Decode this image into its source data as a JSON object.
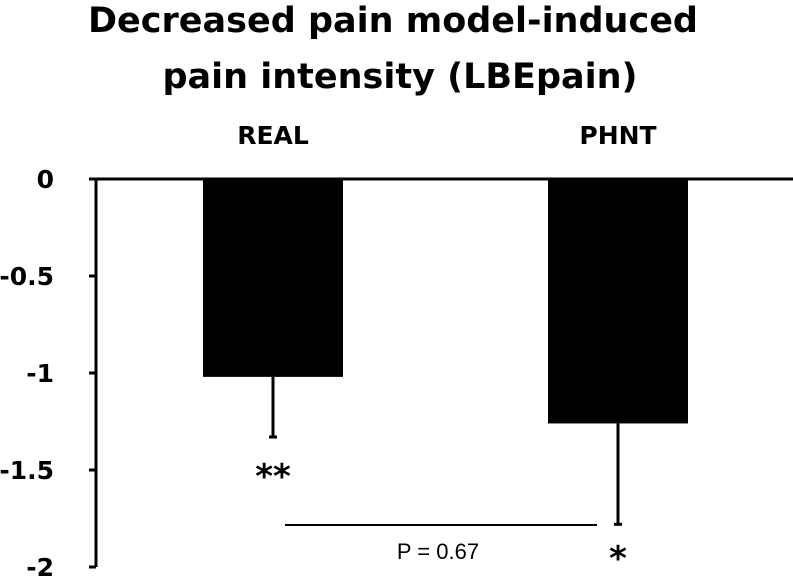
{
  "chart_data": {
    "type": "bar",
    "title": "Decreased pain model-induced pain intensity (LBEpain)",
    "title_lines": [
      "Decreased pain model-induced",
      "pain intensity (LBEpain)"
    ],
    "categories": [
      "REAL",
      "PHNT"
    ],
    "values": [
      -1.02,
      -1.26
    ],
    "error_lower": [
      0.31,
      0.52
    ],
    "significance": [
      "**",
      "*"
    ],
    "comparison": {
      "between": [
        "REAL",
        "PHNT"
      ],
      "label": "P = 0.67"
    },
    "ylim": [
      -2,
      0
    ],
    "yticks": [
      0,
      -0.5,
      -1,
      -1.5,
      -2
    ],
    "ytick_labels": [
      "0",
      "-0.5",
      "-1",
      "-1.5",
      "-2"
    ],
    "xlabel": "",
    "ylabel": "",
    "grid": false,
    "bar_color": "#000000"
  }
}
